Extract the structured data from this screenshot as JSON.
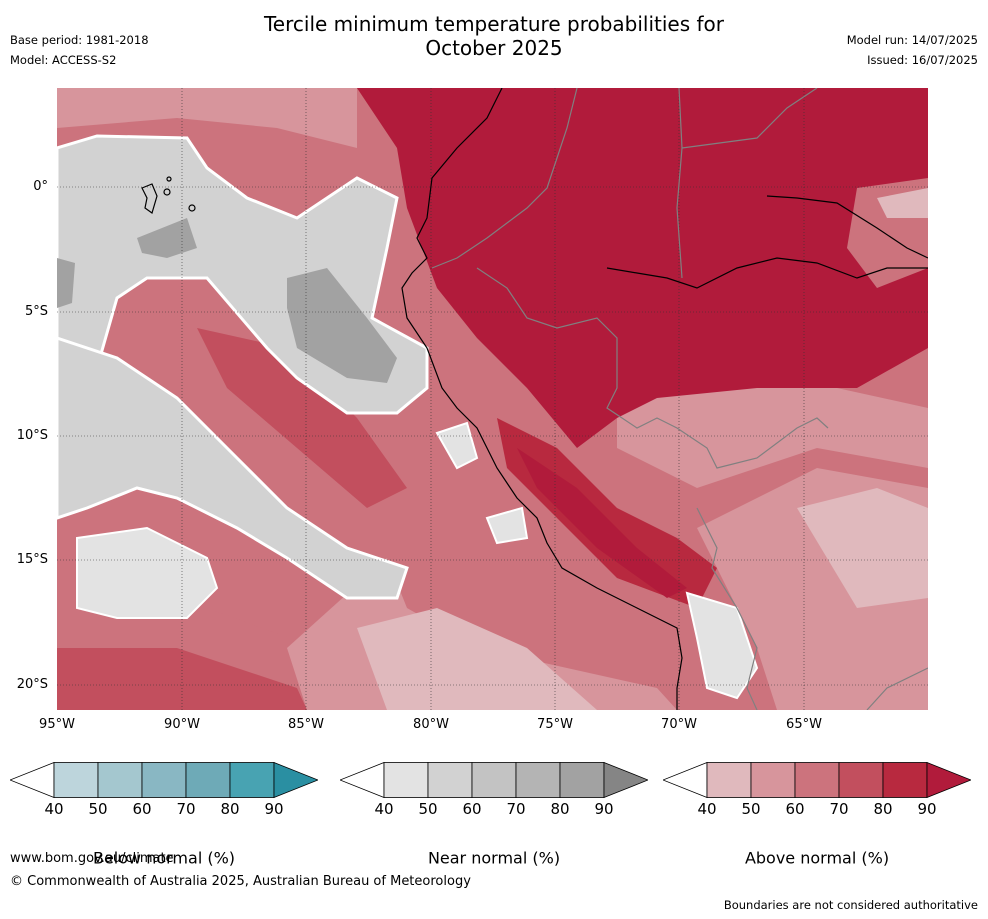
{
  "title_line1": "Tercile minimum temperature probabilities for",
  "title_line2": "October 2025",
  "base_period": "Base period: 1981-2018",
  "model": "Model: ACCESS-S2",
  "model_run": "Model run: 14/07/2025",
  "issued": "Issued: 16/07/2025",
  "map": {
    "lat_ticks": [
      "0°",
      "5°S",
      "10°S",
      "15°S",
      "20°S"
    ],
    "lon_ticks": [
      "95°W",
      "90°W",
      "85°W",
      "80°W",
      "75°W",
      "70°W",
      "65°W"
    ]
  },
  "colorbars": [
    {
      "label": "Below normal (%)",
      "ticks": [
        "40",
        "50",
        "60",
        "70",
        "80",
        "90"
      ],
      "colors": [
        "#ffffff",
        "#bdd5dc",
        "#a4c7cf",
        "#89b7c3",
        "#6eaab7",
        "#48a3b2",
        "#2a8fa2"
      ]
    },
    {
      "label": "Near normal (%)",
      "ticks": [
        "40",
        "50",
        "60",
        "70",
        "80",
        "90"
      ],
      "colors": [
        "#ffffff",
        "#e3e3e3",
        "#d2d2d2",
        "#c3c3c3",
        "#b4b4b4",
        "#a2a2a2",
        "#858585"
      ]
    },
    {
      "label": "Above normal (%)",
      "ticks": [
        "40",
        "50",
        "60",
        "70",
        "80",
        "90"
      ],
      "colors": [
        "#ffffff",
        "#e0b9bd",
        "#d7959c",
        "#cc737d",
        "#c24f5e",
        "#b8293f",
        "#b11b3b"
      ]
    }
  ],
  "footer": {
    "url": "www.bom.gov.au/climate",
    "copyright": "© Commonwealth of Australia 2025, Australian Bureau of Meteorology",
    "disclaimer": "Boundaries are not considered authoritative"
  }
}
